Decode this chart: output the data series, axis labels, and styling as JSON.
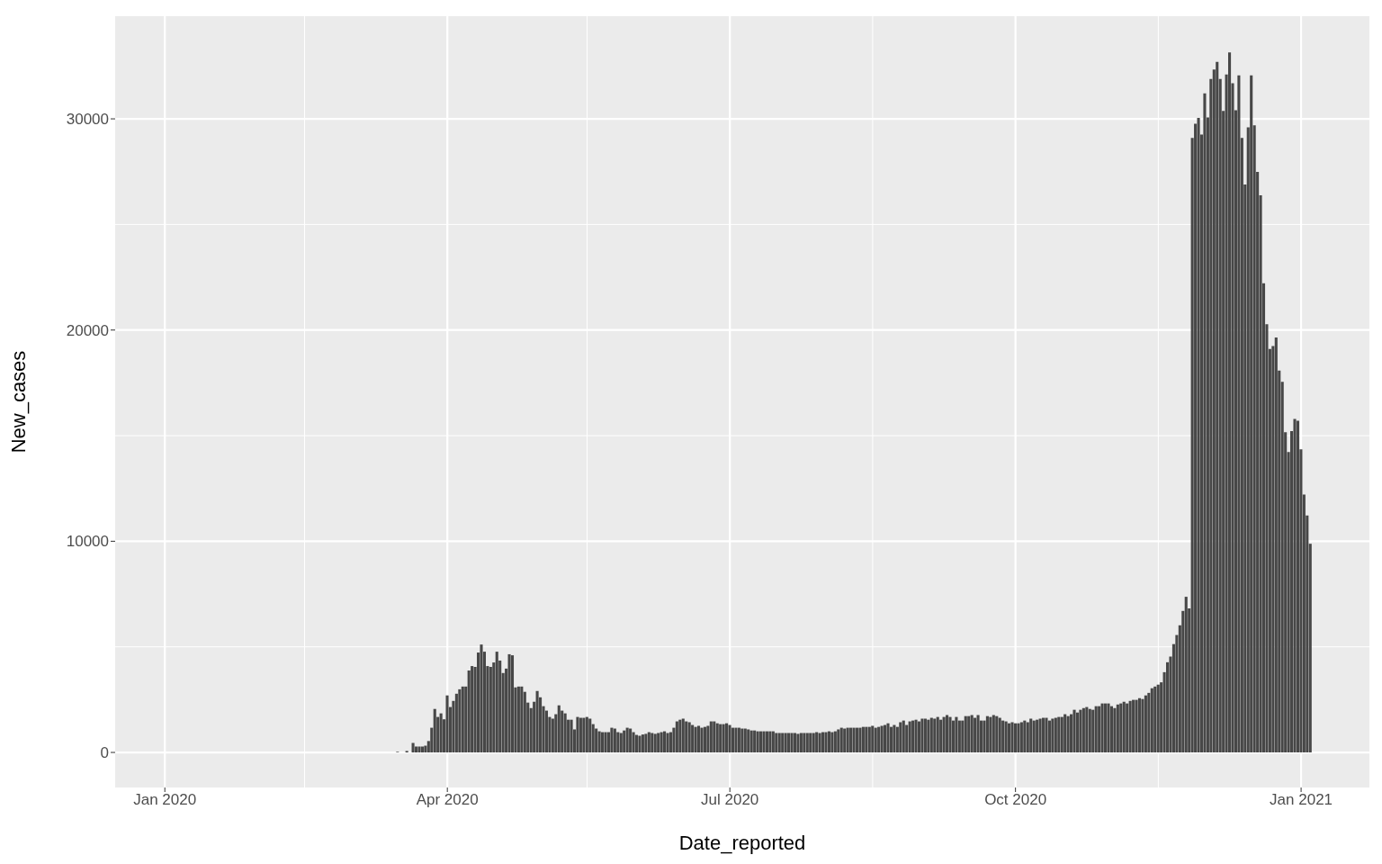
{
  "chart_data": {
    "type": "bar",
    "xlabel": "Date_reported",
    "ylabel": "New_cases",
    "color": "#474747",
    "x": [
      "2020-03-16",
      "2020-03-17",
      "2020-03-18",
      "2020-03-19",
      "2020-03-20",
      "2020-03-21",
      "2020-03-22",
      "2020-03-23",
      "2020-03-24",
      "2020-03-25",
      "2020-03-26",
      "2020-03-27",
      "2020-03-28",
      "2020-03-29",
      "2020-03-30",
      "2020-03-31",
      "2020-04-01",
      "2020-04-02",
      "2020-04-03",
      "2020-04-04",
      "2020-04-05",
      "2020-04-06",
      "2020-04-07",
      "2020-04-08",
      "2020-04-09",
      "2020-04-10",
      "2020-04-11",
      "2020-04-12",
      "2020-04-13",
      "2020-04-14",
      "2020-04-15",
      "2020-04-16",
      "2020-04-17",
      "2020-04-18",
      "2020-04-19",
      "2020-04-20",
      "2020-04-21",
      "2020-04-22",
      "2020-04-23",
      "2020-04-24",
      "2020-04-25",
      "2020-04-26",
      "2020-04-27",
      "2020-04-28",
      "2020-04-29",
      "2020-04-30",
      "2020-05-01",
      "2020-05-02",
      "2020-05-03",
      "2020-05-04",
      "2020-05-05",
      "2020-05-06",
      "2020-05-07",
      "2020-05-08",
      "2020-05-09",
      "2020-05-10",
      "2020-05-11",
      "2020-05-12",
      "2020-05-13",
      "2020-05-14",
      "2020-05-15",
      "2020-05-16",
      "2020-05-17",
      "2020-05-18",
      "2020-05-19",
      "2020-05-20",
      "2020-05-21",
      "2020-05-22",
      "2020-05-23",
      "2020-05-24",
      "2020-05-25",
      "2020-05-26",
      "2020-05-27",
      "2020-05-28",
      "2020-05-29",
      "2020-05-30",
      "2020-05-31",
      "2020-06-01",
      "2020-06-02",
      "2020-06-03",
      "2020-06-04",
      "2020-06-05",
      "2020-06-06",
      "2020-06-07",
      "2020-06-08",
      "2020-06-09",
      "2020-06-10",
      "2020-06-11",
      "2020-06-12",
      "2020-06-13",
      "2020-06-14",
      "2020-06-15",
      "2020-06-16",
      "2020-06-17",
      "2020-06-18",
      "2020-06-19",
      "2020-06-20",
      "2020-06-21",
      "2020-06-22",
      "2020-06-23",
      "2020-06-24",
      "2020-06-25",
      "2020-06-26",
      "2020-06-27",
      "2020-06-28",
      "2020-06-29",
      "2020-06-30",
      "2020-07-01",
      "2020-07-02",
      "2020-07-03",
      "2020-07-04",
      "2020-07-05",
      "2020-07-06",
      "2020-07-07",
      "2020-07-08",
      "2020-07-09",
      "2020-07-10",
      "2020-07-11",
      "2020-07-12",
      "2020-07-13",
      "2020-07-14",
      "2020-07-15",
      "2020-07-16",
      "2020-07-17",
      "2020-07-18",
      "2020-07-19",
      "2020-07-20",
      "2020-07-21",
      "2020-07-22",
      "2020-07-23",
      "2020-07-24",
      "2020-07-25",
      "2020-07-26",
      "2020-07-27",
      "2020-07-28",
      "2020-07-29",
      "2020-07-30",
      "2020-07-31",
      "2020-08-01",
      "2020-08-02",
      "2020-08-03",
      "2020-08-04",
      "2020-08-05",
      "2020-08-06",
      "2020-08-07",
      "2020-08-08",
      "2020-08-09",
      "2020-08-10",
      "2020-08-11",
      "2020-08-12",
      "2020-08-13",
      "2020-08-14",
      "2020-08-15",
      "2020-08-16",
      "2020-08-17",
      "2020-08-18",
      "2020-08-19",
      "2020-08-20",
      "2020-08-21",
      "2020-08-22",
      "2020-08-23",
      "2020-08-24",
      "2020-08-25",
      "2020-08-26",
      "2020-08-27",
      "2020-08-28",
      "2020-08-29",
      "2020-08-30",
      "2020-08-31",
      "2020-09-01",
      "2020-09-02",
      "2020-09-03",
      "2020-09-04",
      "2020-09-05",
      "2020-09-06",
      "2020-09-07",
      "2020-09-08",
      "2020-09-09",
      "2020-09-10",
      "2020-09-11",
      "2020-09-12",
      "2020-09-13",
      "2020-09-14",
      "2020-09-15",
      "2020-09-16",
      "2020-09-17",
      "2020-09-18",
      "2020-09-19",
      "2020-09-20",
      "2020-09-21",
      "2020-09-22",
      "2020-09-23",
      "2020-09-24",
      "2020-09-25",
      "2020-09-26",
      "2020-09-27",
      "2020-09-28",
      "2020-09-29",
      "2020-09-30",
      "2020-10-01",
      "2020-10-02",
      "2020-10-03",
      "2020-10-04",
      "2020-10-05",
      "2020-10-06",
      "2020-10-07",
      "2020-10-08",
      "2020-10-09",
      "2020-10-10",
      "2020-10-11",
      "2020-10-12",
      "2020-10-13",
      "2020-10-14",
      "2020-10-15",
      "2020-10-16",
      "2020-10-17",
      "2020-10-18",
      "2020-10-19",
      "2020-10-20",
      "2020-10-21",
      "2020-10-22",
      "2020-10-23",
      "2020-10-24",
      "2020-10-25",
      "2020-10-26",
      "2020-10-27",
      "2020-10-28",
      "2020-10-29",
      "2020-10-30",
      "2020-10-31",
      "2020-11-01",
      "2020-11-02",
      "2020-11-03",
      "2020-11-04",
      "2020-11-05",
      "2020-11-06",
      "2020-11-07",
      "2020-11-08",
      "2020-11-09",
      "2020-11-10",
      "2020-11-11",
      "2020-11-12",
      "2020-11-13",
      "2020-11-14",
      "2020-11-15",
      "2020-11-16",
      "2020-11-17",
      "2020-11-18",
      "2020-11-19",
      "2020-11-20",
      "2020-11-21",
      "2020-11-22",
      "2020-11-23",
      "2020-11-24",
      "2020-11-25",
      "2020-11-26",
      "2020-11-27",
      "2020-11-28",
      "2020-11-29",
      "2020-11-30",
      "2020-12-01",
      "2020-12-02",
      "2020-12-03",
      "2020-12-04",
      "2020-12-05",
      "2020-12-06",
      "2020-12-07",
      "2020-12-08",
      "2020-12-09",
      "2020-12-10",
      "2020-12-11",
      "2020-12-12",
      "2020-12-13",
      "2020-12-14",
      "2020-12-15",
      "2020-12-16",
      "2020-12-17",
      "2020-12-18",
      "2020-12-19",
      "2020-12-20",
      "2020-12-21",
      "2020-12-22",
      "2020-12-23",
      "2020-12-24",
      "2020-12-25",
      "2020-12-26",
      "2020-12-27",
      "2020-12-28",
      "2020-12-29",
      "2020-12-30",
      "2020-12-31",
      "2021-01-01",
      "2021-01-02",
      "2021-01-03",
      "2021-01-04"
    ],
    "values": [
      30,
      null,
      null,
      70,
      0,
      450,
      280,
      280,
      280,
      320,
      540,
      1170,
      2060,
      1680,
      1850,
      1570,
      2700,
      2150,
      2440,
      2780,
      2990,
      3120,
      3120,
      3880,
      4090,
      4050,
      4730,
      5110,
      4770,
      4090,
      4050,
      4260,
      4770,
      4350,
      3760,
      3970,
      4650,
      4600,
      3080,
      3120,
      3120,
      2870,
      2360,
      2100,
      2400,
      2910,
      2610,
      2190,
      1980,
      1680,
      1600,
      1810,
      2230,
      1980,
      1850,
      1550,
      1550,
      1090,
      1680,
      1640,
      1640,
      1680,
      1600,
      1340,
      1130,
      1000,
      960,
      960,
      960,
      1170,
      1130,
      960,
      920,
      1040,
      1170,
      1130,
      960,
      830,
      790,
      850,
      880,
      960,
      920,
      880,
      920,
      960,
      1000,
      920,
      960,
      1170,
      1470,
      1550,
      1600,
      1470,
      1430,
      1300,
      1210,
      1260,
      1170,
      1210,
      1260,
      1470,
      1470,
      1380,
      1340,
      1340,
      1380,
      1300,
      1170,
      1170,
      1170,
      1130,
      1130,
      1090,
      1040,
      1040,
      1000,
      1000,
      1000,
      1000,
      1000,
      1000,
      920,
      920,
      920,
      920,
      920,
      920,
      920,
      880,
      920,
      920,
      920,
      920,
      920,
      960,
      920,
      960,
      960,
      1000,
      960,
      1000,
      1090,
      1170,
      1130,
      1170,
      1170,
      1170,
      1170,
      1170,
      1210,
      1210,
      1210,
      1260,
      1170,
      1210,
      1260,
      1300,
      1380,
      1210,
      1300,
      1210,
      1430,
      1510,
      1300,
      1470,
      1510,
      1550,
      1470,
      1600,
      1600,
      1550,
      1640,
      1600,
      1680,
      1550,
      1680,
      1770,
      1680,
      1510,
      1680,
      1510,
      1510,
      1720,
      1720,
      1770,
      1640,
      1770,
      1510,
      1510,
      1720,
      1680,
      1770,
      1720,
      1640,
      1510,
      1470,
      1380,
      1430,
      1380,
      1380,
      1430,
      1510,
      1430,
      1600,
      1510,
      1550,
      1600,
      1640,
      1640,
      1510,
      1600,
      1640,
      1680,
      1680,
      1810,
      1720,
      1810,
      2020,
      1890,
      2020,
      2100,
      2150,
      2060,
      2020,
      2190,
      2190,
      2320,
      2320,
      2320,
      2190,
      2100,
      2270,
      2320,
      2400,
      2320,
      2440,
      2490,
      2490,
      2570,
      2530,
      2700,
      2820,
      3040,
      3120,
      3210,
      3320,
      3800,
      4270,
      4540,
      5130,
      5560,
      6020,
      6700,
      7370,
      6820,
      29100,
      29770,
      30040,
      29260,
      31210,
      30070,
      31890,
      32340,
      32700,
      31890,
      30370,
      32100,
      33150,
      31680,
      30410,
      32060,
      29100,
      26890,
      29600,
      32060,
      29690,
      27490,
      26380,
      22210,
      20280,
      19100,
      19240,
      19650,
      18080,
      17550,
      15160,
      14220,
      15220,
      15790,
      15710,
      14350,
      12210,
      11220,
      9880
    ],
    "xlim": [
      "2019-12-16",
      "2021-01-23"
    ],
    "xticks": [
      {
        "value": "2020-01-01",
        "label": "Jan 2020"
      },
      {
        "value": "2020-02-15",
        "label": null
      },
      {
        "value": "2020-04-01",
        "label": "Apr 2020"
      },
      {
        "value": "2020-05-16",
        "label": null
      },
      {
        "value": "2020-07-01",
        "label": "Jul 2020"
      },
      {
        "value": "2020-08-16",
        "label": null
      },
      {
        "value": "2020-10-01",
        "label": "Oct 2020"
      },
      {
        "value": "2020-11-16",
        "label": null
      },
      {
        "value": "2021-01-01",
        "label": "Jan 2021"
      }
    ],
    "ylim": [
      -1660,
      34860
    ],
    "yticks": [
      0,
      {
        "value": 5000,
        "label": null
      },
      10000,
      {
        "value": 15000,
        "label": null
      },
      20000,
      {
        "value": 25000,
        "label": null
      },
      30000
    ],
    "grid": true
  }
}
